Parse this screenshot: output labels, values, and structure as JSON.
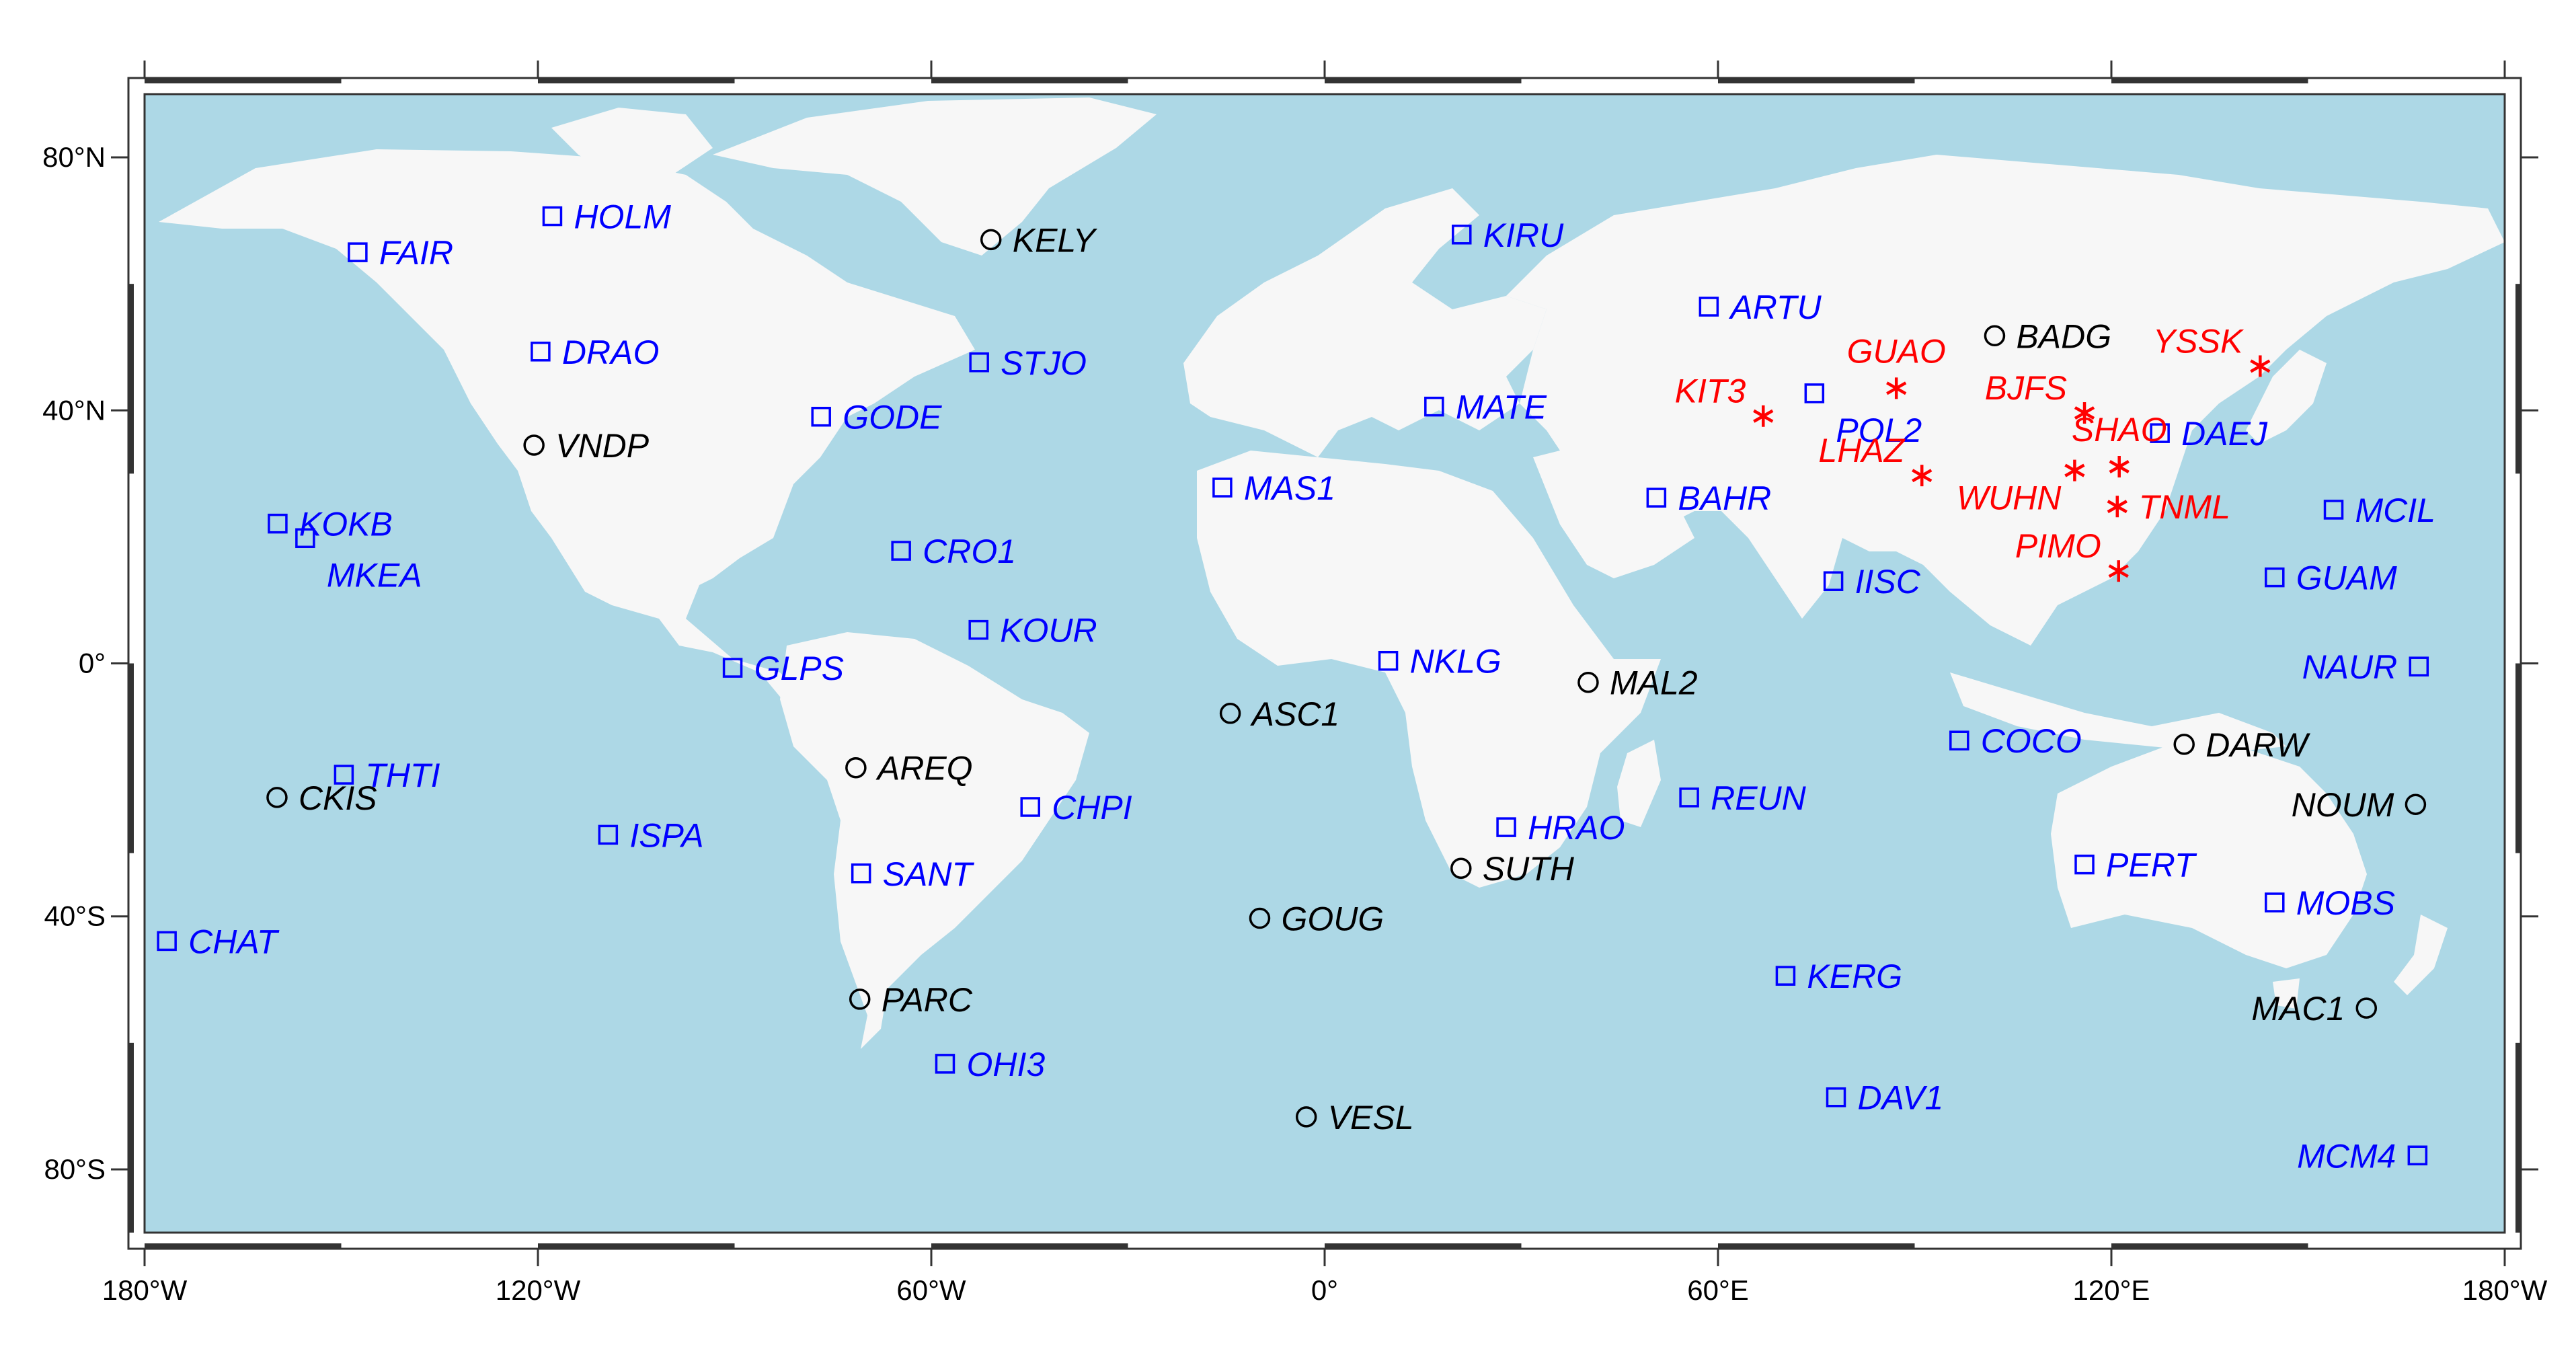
{
  "colors": {
    "ocean": "#add8e6",
    "land": "#f7f7f7",
    "frame": "#333333",
    "igs_station": "#0000ff",
    "other_station": "#000000",
    "chinese_station": "#ff0000"
  },
  "symbol_legend": {
    "square": "blue station",
    "circle": "black station",
    "asterisk": "red station"
  },
  "x_ticks": [
    {
      "lon": -180,
      "label": "180°W"
    },
    {
      "lon": -120,
      "label": "120°W"
    },
    {
      "lon": -60,
      "label": "60°W"
    },
    {
      "lon": 0,
      "label": "0°"
    },
    {
      "lon": 60,
      "label": "60°E"
    },
    {
      "lon": 120,
      "label": "120°E"
    },
    {
      "lon": 180,
      "label": "180°W"
    }
  ],
  "y_ticks": [
    {
      "lat": 80,
      "label": "80°N"
    },
    {
      "lat": 40,
      "label": "40°N"
    },
    {
      "lat": 0,
      "label": "0°"
    },
    {
      "lat": -40,
      "label": "40°S"
    },
    {
      "lat": -80,
      "label": "80°S"
    }
  ],
  "stations": [
    {
      "name": "FAIR",
      "lon": -147.5,
      "lat": 65.0,
      "symbol": "square",
      "color": "#0000ff",
      "label_side": "right"
    },
    {
      "name": "HOLM",
      "lon": -117.8,
      "lat": 70.7,
      "symbol": "square",
      "color": "#0000ff",
      "label_side": "right"
    },
    {
      "name": "DRAO",
      "lon": -119.6,
      "lat": 49.3,
      "symbol": "square",
      "color": "#0000ff",
      "label_side": "right"
    },
    {
      "name": "KELY",
      "lon": -50.9,
      "lat": 67.0,
      "symbol": "circle",
      "color": "#000000",
      "label_side": "right"
    },
    {
      "name": "STJO",
      "lon": -52.7,
      "lat": 47.6,
      "symbol": "square",
      "color": "#0000ff",
      "label_side": "right"
    },
    {
      "name": "GODE",
      "lon": -76.8,
      "lat": 39.0,
      "symbol": "square",
      "color": "#0000ff",
      "label_side": "right"
    },
    {
      "name": "VNDP",
      "lon": -120.6,
      "lat": 34.5,
      "symbol": "circle",
      "color": "#000000",
      "label_side": "right"
    },
    {
      "name": "KOKB",
      "lon": -159.7,
      "lat": 22.1,
      "symbol": "square",
      "color": "#0000ff",
      "label_side": "right"
    },
    {
      "name": "MKEA",
      "lon": -155.5,
      "lat": 19.8,
      "symbol": "square",
      "color": "#0000ff",
      "label_side": "right-below"
    },
    {
      "name": "CRO1",
      "lon": -64.6,
      "lat": 17.8,
      "symbol": "square",
      "color": "#0000ff",
      "label_side": "right"
    },
    {
      "name": "MAS1",
      "lon": -15.6,
      "lat": 27.8,
      "symbol": "square",
      "color": "#0000ff",
      "label_side": "right"
    },
    {
      "name": "KOUR",
      "lon": -52.8,
      "lat": 5.3,
      "symbol": "square",
      "color": "#0000ff",
      "label_side": "right"
    },
    {
      "name": "GLPS",
      "lon": -90.3,
      "lat": -0.7,
      "symbol": "square",
      "color": "#0000ff",
      "label_side": "right"
    },
    {
      "name": "AREQ",
      "lon": -71.5,
      "lat": -16.5,
      "symbol": "circle",
      "color": "#000000",
      "label_side": "right"
    },
    {
      "name": "THTI",
      "lon": -149.6,
      "lat": -17.6,
      "symbol": "square",
      "color": "#0000ff",
      "label_side": "right"
    },
    {
      "name": "CKIS",
      "lon": -159.8,
      "lat": -21.2,
      "symbol": "circle",
      "color": "#000000",
      "label_side": "right"
    },
    {
      "name": "ISPA",
      "lon": -109.3,
      "lat": -27.1,
      "symbol": "square",
      "color": "#0000ff",
      "label_side": "right"
    },
    {
      "name": "CHPI",
      "lon": -44.9,
      "lat": -22.7,
      "symbol": "square",
      "color": "#0000ff",
      "label_side": "right"
    },
    {
      "name": "SANT",
      "lon": -70.7,
      "lat": -33.2,
      "symbol": "square",
      "color": "#0000ff",
      "label_side": "right"
    },
    {
      "name": "CHAT",
      "lon": -176.6,
      "lat": -43.9,
      "symbol": "square",
      "color": "#0000ff",
      "label_side": "right"
    },
    {
      "name": "PARC",
      "lon": -70.9,
      "lat": -53.1,
      "symbol": "circle",
      "color": "#000000",
      "label_side": "right"
    },
    {
      "name": "OHI3",
      "lon": -57.9,
      "lat": -63.3,
      "symbol": "square",
      "color": "#0000ff",
      "label_side": "right"
    },
    {
      "name": "ASC1",
      "lon": -14.4,
      "lat": -7.9,
      "symbol": "circle",
      "color": "#000000",
      "label_side": "right"
    },
    {
      "name": "GOUG",
      "lon": -9.9,
      "lat": -40.3,
      "symbol": "circle",
      "color": "#000000",
      "label_side": "right"
    },
    {
      "name": "VESL",
      "lon": -2.8,
      "lat": -71.7,
      "symbol": "circle",
      "color": "#000000",
      "label_side": "right"
    },
    {
      "name": "KIRU",
      "lon": 20.9,
      "lat": 67.8,
      "symbol": "square",
      "color": "#0000ff",
      "label_side": "right"
    },
    {
      "name": "MATE",
      "lon": 16.7,
      "lat": 40.6,
      "symbol": "square",
      "color": "#0000ff",
      "label_side": "right"
    },
    {
      "name": "NKLG",
      "lon": 9.7,
      "lat": 0.4,
      "symbol": "square",
      "color": "#0000ff",
      "label_side": "right"
    },
    {
      "name": "MAL2",
      "lon": 40.2,
      "lat": -3.0,
      "symbol": "circle",
      "color": "#000000",
      "label_side": "right"
    },
    {
      "name": "HRAO",
      "lon": 27.7,
      "lat": -25.9,
      "symbol": "square",
      "color": "#0000ff",
      "label_side": "right"
    },
    {
      "name": "SUTH",
      "lon": 20.8,
      "lat": -32.4,
      "symbol": "circle",
      "color": "#000000",
      "label_side": "right"
    },
    {
      "name": "ARTU",
      "lon": 58.6,
      "lat": 56.4,
      "symbol": "square",
      "color": "#0000ff",
      "label_side": "right"
    },
    {
      "name": "BAHR",
      "lon": 50.6,
      "lat": 26.2,
      "symbol": "square",
      "color": "#0000ff",
      "label_side": "right"
    },
    {
      "name": "REUN",
      "lon": 55.6,
      "lat": -21.2,
      "symbol": "square",
      "color": "#0000ff",
      "label_side": "right"
    },
    {
      "name": "KERG",
      "lon": 70.3,
      "lat": -49.4,
      "symbol": "square",
      "color": "#0000ff",
      "label_side": "right"
    },
    {
      "name": "DAV1",
      "lon": 78.0,
      "lat": -68.6,
      "symbol": "square",
      "color": "#0000ff",
      "label_side": "right"
    },
    {
      "name": "POL2",
      "lon": 74.7,
      "lat": 42.7,
      "symbol": "square",
      "color": "#0000ff",
      "label_side": "right-below"
    },
    {
      "name": "IISC",
      "lon": 77.6,
      "lat": 13.0,
      "symbol": "square",
      "color": "#0000ff",
      "label_side": "right"
    },
    {
      "name": "BADG",
      "lon": 102.2,
      "lat": 51.8,
      "symbol": "circle",
      "color": "#000000",
      "label_side": "right"
    },
    {
      "name": "COCO",
      "lon": 96.8,
      "lat": -12.2,
      "symbol": "square",
      "color": "#0000ff",
      "label_side": "right"
    },
    {
      "name": "DARW",
      "lon": 131.1,
      "lat": -12.8,
      "symbol": "circle",
      "color": "#000000",
      "label_side": "right"
    },
    {
      "name": "PERT",
      "lon": 115.9,
      "lat": -31.8,
      "symbol": "square",
      "color": "#0000ff",
      "label_side": "right"
    },
    {
      "name": "DAEJ",
      "lon": 127.4,
      "lat": 36.4,
      "symbol": "square",
      "color": "#0000ff",
      "label_side": "right"
    },
    {
      "name": "MCIL",
      "lon": 153.9,
      "lat": 24.3,
      "symbol": "square",
      "color": "#0000ff",
      "label_side": "right"
    },
    {
      "name": "GUAM",
      "lon": 144.9,
      "lat": 13.6,
      "symbol": "square",
      "color": "#0000ff",
      "label_side": "right"
    },
    {
      "name": "NAUR",
      "lon": 166.9,
      "lat": -0.5,
      "symbol": "square",
      "color": "#0000ff",
      "label_side": "left"
    },
    {
      "name": "NOUM",
      "lon": 166.4,
      "lat": -22.3,
      "symbol": "circle",
      "color": "#000000",
      "label_side": "left"
    },
    {
      "name": "MOBS",
      "lon": 144.9,
      "lat": -37.8,
      "symbol": "square",
      "color": "#0000ff",
      "label_side": "right"
    },
    {
      "name": "MAC1",
      "lon": 158.9,
      "lat": -54.5,
      "symbol": "circle",
      "color": "#000000",
      "label_side": "left"
    },
    {
      "name": "MCM4",
      "lon": 166.7,
      "lat": -77.8,
      "symbol": "square",
      "color": "#0000ff",
      "label_side": "left"
    },
    {
      "name": "KIT3",
      "lon": 66.9,
      "lat": 39.1,
      "symbol": "asterisk",
      "color": "#ff0000",
      "label_side": "left-above"
    },
    {
      "name": "GUAO",
      "lon": 87.2,
      "lat": 43.5,
      "symbol": "asterisk",
      "color": "#ff0000",
      "label_side": "above"
    },
    {
      "name": "LHAZ",
      "lon": 91.1,
      "lat": 29.7,
      "symbol": "asterisk",
      "color": "#ff0000",
      "label_side": "left-above"
    },
    {
      "name": "BJFS",
      "lon": 115.9,
      "lat": 39.6,
      "symbol": "asterisk",
      "color": "#ff0000",
      "label_side": "left-above"
    },
    {
      "name": "YSSK",
      "lon": 142.7,
      "lat": 47.0,
      "symbol": "asterisk",
      "color": "#ff0000",
      "label_side": "left-above"
    },
    {
      "name": "SHAO",
      "lon": 121.2,
      "lat": 31.1,
      "symbol": "asterisk",
      "color": "#ff0000",
      "label_side": "above"
    },
    {
      "name": "WUHN",
      "lon": 114.4,
      "lat": 30.5,
      "symbol": "asterisk",
      "color": "#ff0000",
      "label_side": "left-below"
    },
    {
      "name": "TNML",
      "lon": 120.9,
      "lat": 24.8,
      "symbol": "asterisk",
      "color": "#ff0000",
      "label_side": "right"
    },
    {
      "name": "PIMO",
      "lon": 121.1,
      "lat": 14.6,
      "symbol": "asterisk",
      "color": "#ff0000",
      "label_side": "left-above"
    }
  ]
}
